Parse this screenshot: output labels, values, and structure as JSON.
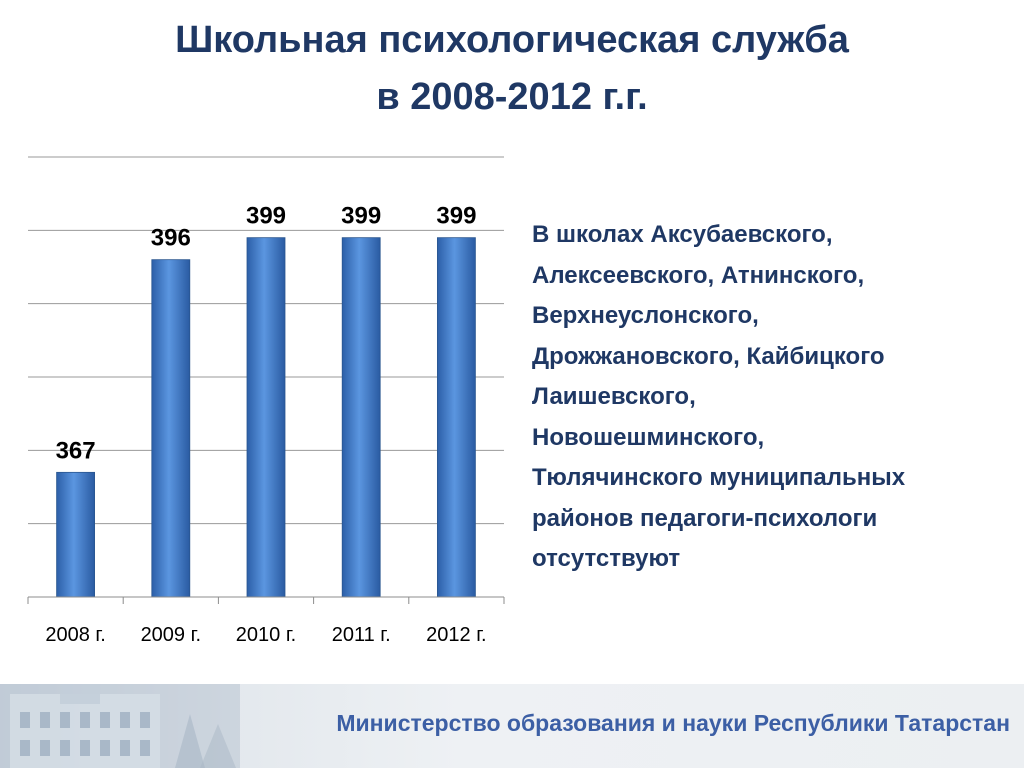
{
  "title": {
    "line1": "Школьная психологическая служба",
    "line2": "в 2008-2012 г.г."
  },
  "chart_data": {
    "type": "bar",
    "categories": [
      "2008 г.",
      "2009 г.",
      "2010 г.",
      "2011 г.",
      "2012 г."
    ],
    "values": [
      367,
      396,
      399,
      399,
      399
    ],
    "data_labels": [
      "367",
      "396",
      "399",
      "399",
      "399"
    ],
    "ylim": [
      350,
      410
    ],
    "grid": true,
    "legend": "none",
    "bar_color": "#4a86d4"
  },
  "side_text": {
    "lines": [
      "В школах Аксубаевского,",
      "Алексеевского, Атнинского,",
      "Верхнеуслонского,",
      "Дрожжановского, Кайбицкого",
      "Лаишевского,",
      "Новошешминского,",
      "Тюлячинского муниципальных",
      "районов педагоги-психологи",
      "отсутствуют"
    ]
  },
  "footer": {
    "text": "Министерство образования и науки Республики Татарстан"
  }
}
